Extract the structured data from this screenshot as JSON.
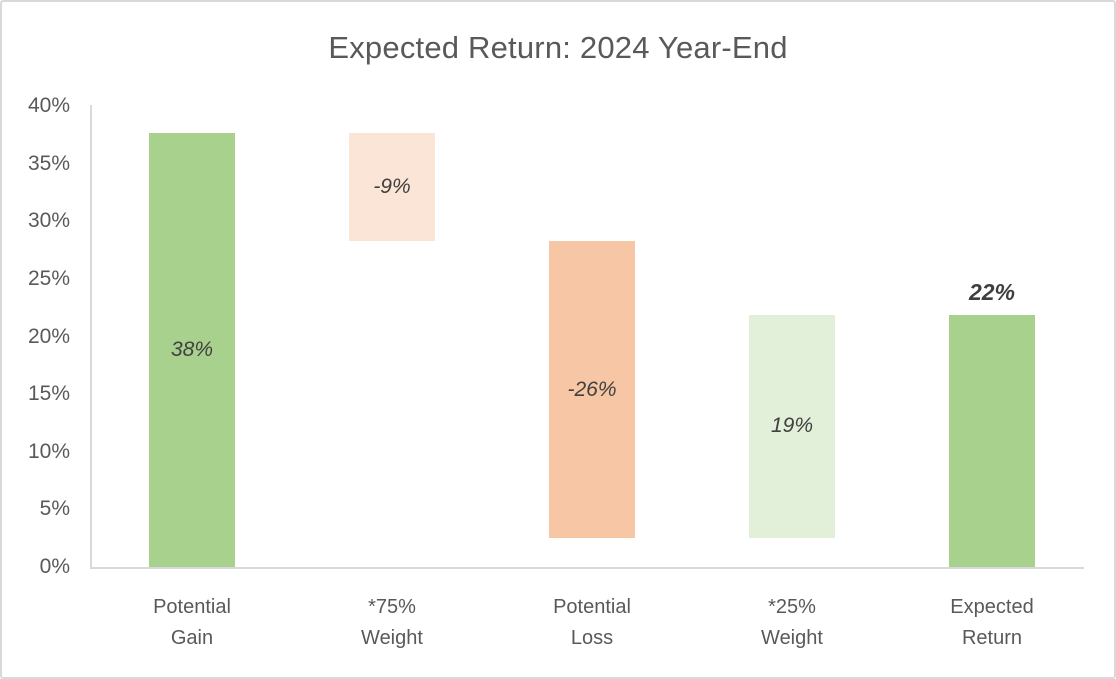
{
  "chart_data": {
    "type": "bar",
    "subtype": "waterfall",
    "title": "Expected Return: 2024 Year-End",
    "categories": [
      "Potential Gain",
      "*75% Weight",
      "Potential Loss",
      "*25% Weight",
      "Expected Return"
    ],
    "y_axis": {
      "min": 0,
      "max": 40,
      "step": 5,
      "unit": "%",
      "tick_labels": [
        "0%",
        "5%",
        "10%",
        "15%",
        "20%",
        "25%",
        "30%",
        "35%",
        "40%"
      ]
    },
    "grid": false,
    "legend": false,
    "bars": [
      {
        "category": "Potential Gain",
        "start": 0,
        "end": 37.7,
        "label": "38%",
        "color": "#a9d18e",
        "label_position": "inside-center"
      },
      {
        "category": "*75% Weight",
        "start": 28.3,
        "end": 37.7,
        "label": "-9%",
        "color": "#fbe5d6",
        "label_position": "inside-center"
      },
      {
        "category": "Potential Loss",
        "start": 2.5,
        "end": 28.3,
        "label": "-26%",
        "color": "#f7c6a5",
        "label_position": "inside-center"
      },
      {
        "category": "*25% Weight",
        "start": 2.5,
        "end": 21.9,
        "label": "19%",
        "color": "#e2efd9",
        "label_position": "inside-center"
      },
      {
        "category": "Expected Return",
        "start": 0,
        "end": 21.9,
        "label": "22%",
        "color": "#a9d18e",
        "label_position": "above"
      }
    ],
    "colors": {
      "positive_green": "#a9d18e",
      "light_peach": "#fbe5d6",
      "orange": "#f7c6a5",
      "light_green": "#e2efd9",
      "axis_line": "#d9d9d9",
      "axis_text": "#595959",
      "title_text": "#595959",
      "data_label_text": "#404040"
    }
  }
}
